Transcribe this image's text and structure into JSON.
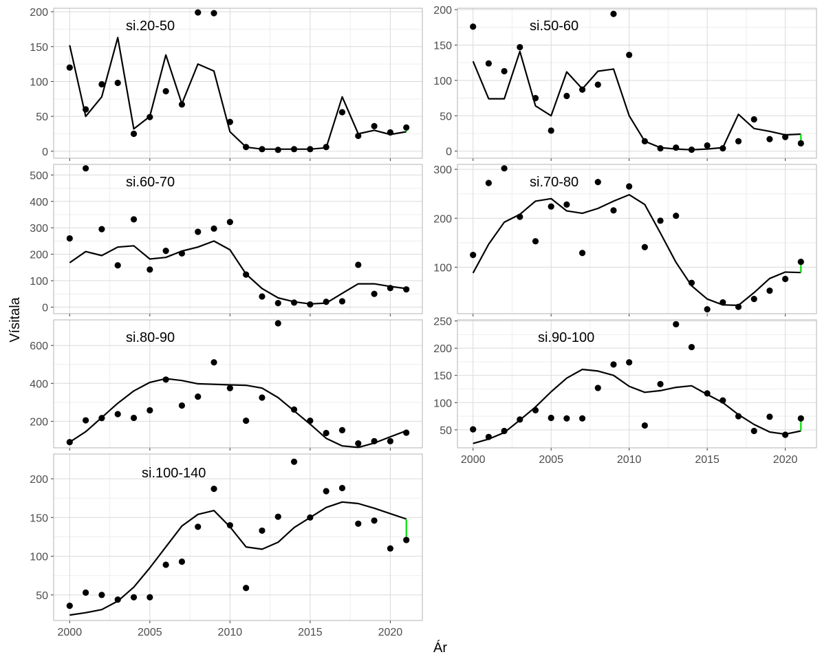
{
  "figure": {
    "xlabel": "Ár",
    "ylabel": "Vísitala"
  },
  "colors": {
    "line": "#000000",
    "point": "#000000",
    "residual": "#00e000",
    "grid_major": "#d9d9d9",
    "grid_minor": "#ededed",
    "border": "#b3b3b3",
    "tick_label": "#4d4d4d"
  },
  "chart_data": [
    {
      "type": "line",
      "title": "si.20-50",
      "x": [
        2000,
        2001,
        2002,
        2003,
        2004,
        2005,
        2006,
        2007,
        2008,
        2009,
        2010,
        2011,
        2012,
        2013,
        2014,
        2015,
        2016,
        2017,
        2018,
        2019,
        2020,
        2021
      ],
      "series": [
        {
          "kind": "points",
          "values": [
            120,
            60,
            96,
            98,
            25,
            49,
            86,
            67,
            199,
            198,
            42,
            6,
            3,
            2,
            3,
            3,
            6,
            56,
            22,
            36,
            27,
            34
          ]
        },
        {
          "kind": "line",
          "values": [
            152,
            50,
            78,
            163,
            32,
            50,
            138,
            68,
            125,
            115,
            28,
            6,
            3,
            3,
            3,
            3,
            5,
            78,
            25,
            30,
            24,
            28
          ]
        }
      ],
      "xlim": [
        1999,
        2022
      ],
      "ylim": [
        -10,
        205
      ],
      "xticks": [
        2000,
        2005,
        2010,
        2015,
        2020
      ],
      "yticks": [
        0,
        50,
        100,
        150,
        200
      ]
    },
    {
      "type": "line",
      "title": "si.50-60",
      "x": [
        2000,
        2001,
        2002,
        2003,
        2004,
        2005,
        2006,
        2007,
        2008,
        2009,
        2010,
        2011,
        2012,
        2013,
        2014,
        2015,
        2016,
        2017,
        2018,
        2019,
        2020,
        2021
      ],
      "series": [
        {
          "kind": "points",
          "values": [
            176,
            124,
            113,
            147,
            75,
            29,
            78,
            87,
            94,
            194,
            136,
            14,
            4,
            5,
            2,
            8,
            4,
            14,
            45,
            17,
            20,
            11
          ]
        },
        {
          "kind": "line",
          "values": [
            127,
            74,
            74,
            141,
            64,
            50,
            112,
            88,
            113,
            116,
            50,
            14,
            5,
            3,
            2,
            3,
            5,
            52,
            32,
            28,
            23,
            24
          ]
        }
      ],
      "xlim": [
        1999,
        2022
      ],
      "ylim": [
        -10,
        202
      ],
      "xticks": [
        2000,
        2005,
        2010,
        2015,
        2020
      ],
      "yticks": [
        0,
        50,
        100,
        150,
        200
      ]
    },
    {
      "type": "line",
      "title": "si.60-70",
      "x": [
        2000,
        2001,
        2002,
        2003,
        2004,
        2005,
        2006,
        2007,
        2008,
        2009,
        2010,
        2011,
        2012,
        2013,
        2014,
        2015,
        2016,
        2017,
        2018,
        2019,
        2020,
        2021
      ],
      "series": [
        {
          "kind": "points",
          "values": [
            260,
            525,
            295,
            158,
            332,
            142,
            213,
            203,
            285,
            297,
            322,
            123,
            40,
            15,
            17,
            10,
            20,
            22,
            160,
            50,
            72,
            67
          ]
        },
        {
          "kind": "line",
          "values": [
            168,
            210,
            195,
            227,
            232,
            182,
            188,
            212,
            227,
            250,
            217,
            125,
            70,
            35,
            20,
            12,
            15,
            52,
            88,
            88,
            78,
            70
          ]
        }
      ],
      "xlim": [
        1999,
        2022
      ],
      "ylim": [
        -25,
        540
      ],
      "xticks": [
        2000,
        2005,
        2010,
        2015,
        2020
      ],
      "yticks": [
        0,
        100,
        200,
        300,
        400,
        500
      ]
    },
    {
      "type": "line",
      "title": "si.70-80",
      "x": [
        2000,
        2001,
        2002,
        2003,
        2004,
        2005,
        2006,
        2007,
        2008,
        2009,
        2010,
        2011,
        2012,
        2013,
        2014,
        2015,
        2016,
        2017,
        2018,
        2019,
        2020,
        2021
      ],
      "series": [
        {
          "kind": "points",
          "values": [
            125,
            272,
            302,
            203,
            153,
            224,
            228,
            129,
            274,
            216,
            265,
            141,
            195,
            205,
            68,
            14,
            28,
            19,
            35,
            52,
            76,
            111
          ]
        },
        {
          "kind": "line",
          "values": [
            88,
            147,
            192,
            208,
            235,
            240,
            215,
            210,
            220,
            235,
            248,
            228,
            170,
            110,
            62,
            35,
            23,
            22,
            48,
            77,
            90,
            89
          ]
        }
      ],
      "xlim": [
        1999,
        2022
      ],
      "ylim": [
        5,
        310
      ],
      "xticks": [
        2000,
        2005,
        2010,
        2015,
        2020
      ],
      "yticks": [
        100,
        200,
        300
      ]
    },
    {
      "type": "line",
      "title": "si.80-90",
      "x": [
        2000,
        2001,
        2002,
        2003,
        2004,
        2005,
        2006,
        2007,
        2008,
        2009,
        2010,
        2011,
        2012,
        2013,
        2014,
        2015,
        2016,
        2017,
        2018,
        2019,
        2020,
        2021
      ],
      "series": [
        {
          "kind": "points",
          "values": [
            90,
            205,
            217,
            238,
            218,
            258,
            420,
            283,
            330,
            511,
            375,
            203,
            325,
            717,
            262,
            203,
            138,
            153,
            83,
            95,
            95,
            140
          ]
        },
        {
          "kind": "line",
          "values": [
            90,
            145,
            220,
            295,
            360,
            405,
            425,
            415,
            398,
            395,
            392,
            390,
            375,
            325,
            255,
            185,
            110,
            70,
            62,
            85,
            118,
            150
          ]
        }
      ],
      "xlim": [
        1999,
        2022
      ],
      "ylim": [
        60,
        735
      ],
      "xticks": [
        2000,
        2005,
        2010,
        2015,
        2020
      ],
      "yticks": [
        200,
        400,
        600
      ]
    },
    {
      "type": "line",
      "title": "si.90-100",
      "x": [
        2000,
        2001,
        2002,
        2003,
        2004,
        2005,
        2006,
        2007,
        2008,
        2009,
        2010,
        2011,
        2012,
        2013,
        2014,
        2015,
        2016,
        2017,
        2018,
        2019,
        2020,
        2021
      ],
      "series": [
        {
          "kind": "points",
          "values": [
            51,
            37,
            48,
            69,
            86,
            72,
            71,
            71,
            127,
            170,
            174,
            58,
            134,
            244,
            202,
            117,
            104,
            75,
            48,
            74,
            41,
            71
          ]
        },
        {
          "kind": "line",
          "values": [
            25,
            33,
            45,
            68,
            92,
            120,
            145,
            161,
            158,
            150,
            130,
            119,
            122,
            128,
            131,
            115,
            100,
            78,
            60,
            46,
            42,
            48
          ]
        }
      ],
      "xlim": [
        1999,
        2022
      ],
      "ylim": [
        17,
        252
      ],
      "xticks": [
        2000,
        2005,
        2010,
        2015,
        2020
      ],
      "yticks": [
        50,
        100,
        150,
        200,
        250
      ]
    },
    {
      "type": "line",
      "title": "si.100-140",
      "x": [
        2000,
        2001,
        2002,
        2003,
        2004,
        2005,
        2006,
        2007,
        2008,
        2009,
        2010,
        2011,
        2012,
        2013,
        2014,
        2015,
        2016,
        2017,
        2018,
        2019,
        2020,
        2021
      ],
      "series": [
        {
          "kind": "points",
          "values": [
            36,
            53,
            50,
            44,
            47,
            47,
            89,
            93,
            138,
            187,
            140,
            59,
            133,
            151,
            222,
            150,
            184,
            188,
            142,
            146,
            110,
            121
          ]
        },
        {
          "kind": "line",
          "values": [
            24,
            27,
            31,
            42,
            60,
            85,
            112,
            139,
            154,
            159,
            138,
            112,
            109,
            118,
            137,
            150,
            163,
            170,
            168,
            162,
            155,
            148
          ]
        }
      ],
      "xlim": [
        1999,
        2022
      ],
      "ylim": [
        17,
        232
      ],
      "xticks": [
        2000,
        2005,
        2010,
        2015,
        2020
      ],
      "yticks": [
        50,
        100,
        150,
        200
      ]
    }
  ]
}
